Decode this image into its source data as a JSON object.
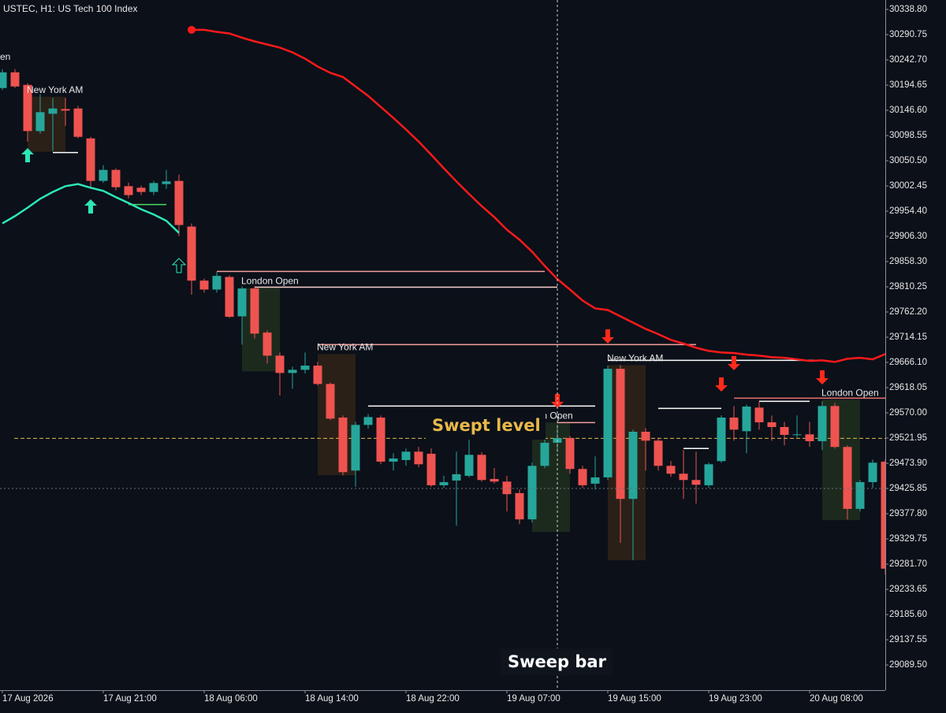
{
  "chart_data": {
    "type": "candlestick",
    "title": "USTEC, H1:  US Tech 100 Index",
    "categories": [
      "17 Aug 2026",
      null,
      null,
      null,
      null,
      null,
      null,
      null,
      "17 Aug 21:00",
      null,
      null,
      null,
      null,
      null,
      null,
      null,
      "18 Aug 06:00",
      null,
      null,
      null,
      null,
      null,
      null,
      null,
      "18 Aug 14:00",
      null,
      null,
      null,
      null,
      null,
      null,
      null,
      "18 Aug 22:00",
      null,
      null,
      null,
      null,
      null,
      null,
      null,
      "19 Aug 07:00",
      null,
      null,
      null,
      null,
      null,
      null,
      null,
      "19 Aug 15:00",
      null,
      null,
      null,
      null,
      null,
      null,
      null,
      "19 Aug 23:00",
      null,
      null,
      null,
      null,
      null,
      null,
      null,
      "20 Aug 08:00",
      null,
      null,
      null,
      null,
      null,
      null
    ],
    "open": [
      30189,
      30219,
      30195,
      30107,
      30140,
      30149,
      30150,
      30093,
      30012,
      30033,
      30002,
      29999,
      29991,
      30006,
      30012,
      29925,
      29822,
      29805,
      29829,
      29754,
      29807,
      29723,
      29679,
      29646,
      29652,
      29660,
      29625,
      29561,
      29460,
      29547,
      29561,
      29477,
      29480,
      29496,
      29492,
      29432,
      29441,
      29450,
      29490,
      29444,
      29439,
      29417,
      29367,
      29469,
      29513,
      29522,
      29463,
      29435,
      29447,
      29654,
      29406,
      29534,
      29517,
      29469,
      29454,
      29442,
      29432,
      29478,
      29561,
      29535,
      29580,
      29552,
      29543,
      29528,
      29529,
      29516,
      29583,
      29505,
      29387,
      29438,
      29477
    ],
    "high": [
      30225,
      30225,
      30198,
      30177,
      30170,
      30170,
      30155,
      30096,
      30042,
      30036,
      30009,
      30003,
      30012,
      30033,
      30024,
      29931,
      29826,
      29838,
      29832,
      29811,
      29811,
      29727,
      29685,
      29658,
      29685,
      29667,
      29628,
      29565,
      29553,
      29568,
      29565,
      29493,
      29502,
      29505,
      29502,
      29450,
      29496,
      29523,
      29495,
      29465,
      29450,
      29424,
      29475,
      29535,
      29547,
      29526,
      29469,
      29487,
      29660,
      29661,
      29538,
      29541,
      29523,
      29478,
      29499,
      29496,
      29475,
      29565,
      29583,
      29586,
      29592,
      29565,
      29553,
      29565,
      29553,
      29592,
      29589,
      29508,
      29442,
      29481,
      29481
    ],
    "low": [
      30185,
      30189,
      30087,
      30102,
      30069,
      30117,
      30093,
      29997,
      30008,
      29994,
      29979,
      29985,
      29985,
      29997,
      29907,
      29795,
      29799,
      29799,
      29751,
      29700,
      29712,
      29664,
      29603,
      29616,
      29645,
      29622,
      29556,
      29451,
      29429,
      29540,
      29472,
      29460,
      29469,
      29466,
      29429,
      29427,
      29355,
      29447,
      29439,
      29435,
      29382,
      29358,
      29361,
      29465,
      29495,
      29454,
      29427,
      29424,
      29442,
      29322,
      29289,
      29460,
      29460,
      29448,
      29406,
      29397,
      29427,
      29475,
      29517,
      29493,
      29538,
      29517,
      29508,
      29523,
      29505,
      29499,
      29502,
      29367,
      29382,
      29427,
      29262
    ],
    "close": [
      30219,
      30192,
      30107,
      30143,
      30150,
      30146,
      30096,
      30012,
      30033,
      30000,
      29985,
      29991,
      30008,
      30011,
      29928,
      29822,
      29805,
      29831,
      29753,
      29807,
      29721,
      29679,
      29646,
      29652,
      29660,
      29625,
      29559,
      29457,
      29547,
      29562,
      29477,
      29483,
      29496,
      29472,
      29432,
      29438,
      29453,
      29490,
      29442,
      29439,
      29415,
      29367,
      29469,
      29513,
      29522,
      29463,
      29432,
      29447,
      29654,
      29406,
      29534,
      29517,
      29469,
      29454,
      29442,
      29433,
      29472,
      29561,
      29538,
      29582,
      29552,
      29543,
      29528,
      29529,
      29516,
      29583,
      29505,
      29387,
      29438,
      29475,
      29273
    ],
    "up_color": "#26a69a",
    "down_color": "#ef5350",
    "lines": [
      {
        "color": "#ff1a1a",
        "values": [
          null,
          null,
          null,
          null,
          null,
          null,
          null,
          null,
          null,
          null,
          null,
          null,
          null,
          null,
          null,
          30300,
          30300,
          30296,
          30293,
          30285,
          30278,
          30272,
          30266,
          30257,
          30245,
          30230,
          30218,
          30210,
          30192,
          30174,
          30153,
          30132,
          30110,
          30087,
          30062,
          30036,
          30011,
          29987,
          29964,
          29943,
          29919,
          29900,
          29877,
          29850,
          29825,
          29805,
          29784,
          29769,
          29766,
          29754,
          29742,
          29730,
          29720,
          29709,
          29702,
          29694,
          29688,
          29685,
          29684,
          29681,
          29679,
          29676,
          29675,
          29672,
          29669,
          29670,
          29667,
          29673,
          29675,
          29672,
          29682
        ]
      },
      {
        "color": "#2ee6b6",
        "values": [
          29931,
          29945,
          29961,
          29978,
          29991,
          30002,
          30006,
          29999,
          29993,
          29981,
          29970,
          29958,
          29948,
          29936,
          29913,
          null,
          null,
          null,
          null,
          null,
          null,
          null,
          null,
          null,
          null,
          null,
          null,
          null,
          null,
          null,
          null,
          null,
          null,
          null,
          null,
          null,
          null,
          null,
          null,
          null,
          null,
          null,
          null,
          null,
          null,
          null,
          null,
          null,
          null,
          null,
          null,
          null,
          null,
          null,
          null,
          null,
          null,
          null,
          null,
          null,
          null,
          null,
          null,
          null,
          null,
          null,
          null,
          null,
          null,
          null,
          null
        ]
      }
    ],
    "sessions": [
      {
        "label": "New York AM",
        "high": 30172.5,
        "low": 30067.5,
        "start": 2,
        "end": 5,
        "color": "#2a2017"
      },
      {
        "label": "London Open",
        "high": 29808,
        "low": 29649,
        "start": 19,
        "end": 22,
        "color": "#1c2a1d"
      },
      {
        "label": "New York AM",
        "high": 29682,
        "low": 29451,
        "start": 25,
        "end": 28,
        "color": "#2a2017"
      },
      {
        "label": "don Open",
        "high": 29551.5,
        "low": 29343,
        "start": 42,
        "end": 45,
        "color": "#1c2a1d"
      },
      {
        "label": "New York AM",
        "high": 29661,
        "low": 29289,
        "start": 48,
        "end": 51,
        "color": "#2a2017"
      },
      {
        "label": "London Open",
        "high": 29595,
        "low": 29365.5,
        "start": 65,
        "end": 68,
        "color": "#1c2a1d"
      }
    ],
    "levels": [
      {
        "value": 29839.5,
        "start": 17,
        "end": 43,
        "color": "#f4a09a"
      },
      {
        "value": 29809.5,
        "start": 20,
        "end": 44,
        "color": "#f8d0cc"
      },
      {
        "value": 29700,
        "start": 25,
        "end": 55,
        "color": "#f4a09a"
      },
      {
        "value": 29670,
        "start": 48,
        "end": 65,
        "color": "#ffffff"
      },
      {
        "value": 29583,
        "start": 29,
        "end": 47,
        "color": "#ffffff"
      },
      {
        "value": 29551.5,
        "start": 44,
        "end": 47,
        "color": "#f4a09a"
      },
      {
        "value": 29578.5,
        "start": 52,
        "end": 57,
        "color": "#ffffff"
      },
      {
        "value": 29502,
        "start": 54,
        "end": 56,
        "color": "#ffffff"
      },
      {
        "value": 29598,
        "start": 58,
        "end": 70,
        "color": "#f07070"
      },
      {
        "value": 29592,
        "start": 60,
        "end": 64,
        "color": "#ffffff"
      },
      {
        "value": 30066,
        "start": 4,
        "end": 6,
        "color": "#ffffff"
      },
      {
        "value": 29967,
        "start": 10,
        "end": 13,
        "color": "#4cd964"
      }
    ],
    "swept_level": 29521.5,
    "annotations": {
      "clipped": "en",
      "swept": "Swept level",
      "sweep_bar": "Sweep bar"
    },
    "ylim": [
      29041.5,
      30356.8
    ],
    "yticks": [
      {
        "value": 30338.8,
        "label": "30338.80"
      },
      30290.75,
      {
        "value": 30242.7,
        "label": "30242.70"
      },
      30194.65,
      {
        "value": 30146.6,
        "label": "30146.60"
      },
      30098.55,
      {
        "value": 30050.5,
        "label": "30050.50"
      },
      30002.45,
      {
        "value": 29954.4,
        "label": "29954.40"
      },
      {
        "value": 29906.3,
        "label": "29906.30"
      },
      {
        "value": 29858.3,
        "label": "29858.30"
      },
      29810.25,
      {
        "value": 29762.2,
        "label": "29762.20"
      },
      29714.15,
      {
        "value": 29666.1,
        "label": "29666.10"
      },
      29618.05,
      {
        "value": 29570,
        "label": "29570.00"
      },
      29521.95,
      {
        "value": 29473.9,
        "label": "29473.90"
      },
      29425.85,
      {
        "value": 29377.8,
        "label": "29377.80"
      },
      29329.75,
      {
        "value": 29281.7,
        "label": "29281.70"
      },
      29233.65,
      {
        "value": 29185.6,
        "label": "29185.60"
      },
      29137.55,
      {
        "value": 29089.5,
        "label": "29089.50"
      }
    ]
  }
}
